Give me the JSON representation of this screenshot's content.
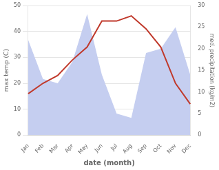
{
  "chart_data": {
    "type": "line",
    "categories": [
      "Jan",
      "Feb",
      "Mar",
      "Apr",
      "May",
      "Jun",
      "Jul",
      "Aug",
      "Sep",
      "Oct",
      "Nov",
      "Dec"
    ],
    "xlabel": "date (month)",
    "ylabel": "max temp (C)",
    "y2label": "med. precipitation (kg/m2)",
    "series": [
      {
        "type": "line",
        "color": "#c0392b",
        "values": [
          16,
          20,
          23,
          29,
          34,
          44,
          44,
          46,
          41,
          34,
          20,
          12
        ],
        "axis": "y"
      },
      {
        "type": "area",
        "color": "#c5cef0",
        "values": [
          22,
          13,
          12,
          17,
          28,
          14,
          5,
          4,
          19,
          20,
          25,
          14
        ],
        "axis": "y2"
      }
    ],
    "ylim": [
      0,
      50
    ],
    "yticks": [
      0,
      10,
      20,
      30,
      40,
      50
    ],
    "y2lim": [
      0,
      30
    ],
    "y2ticks": [
      0,
      5,
      10,
      15,
      20,
      25,
      30
    ],
    "grid": true
  }
}
